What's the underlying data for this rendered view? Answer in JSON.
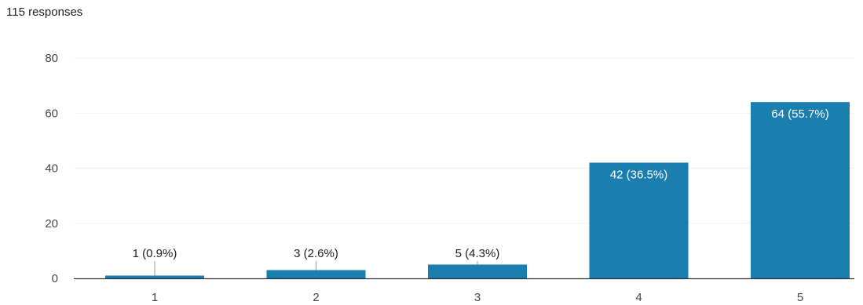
{
  "summary": {
    "responses_label": "115 responses"
  },
  "colors": {
    "bar": "#1a7fae",
    "axis": "#333333",
    "grid": "#f1f1f1",
    "leader": "#9e9e9e"
  },
  "chart_data": {
    "type": "bar",
    "categories": [
      "1",
      "2",
      "3",
      "4",
      "5"
    ],
    "values": [
      1,
      3,
      5,
      42,
      64
    ],
    "data_labels": [
      "1 (0.9%)",
      "3 (2.6%)",
      "5 (4.3%)",
      "42 (36.5%)",
      "64 (55.7%)"
    ],
    "yticks": [
      0,
      20,
      40,
      60,
      80
    ],
    "ylim": [
      0,
      80
    ],
    "title": "",
    "xlabel": "",
    "ylabel": "",
    "grid": false,
    "legend": "none"
  }
}
